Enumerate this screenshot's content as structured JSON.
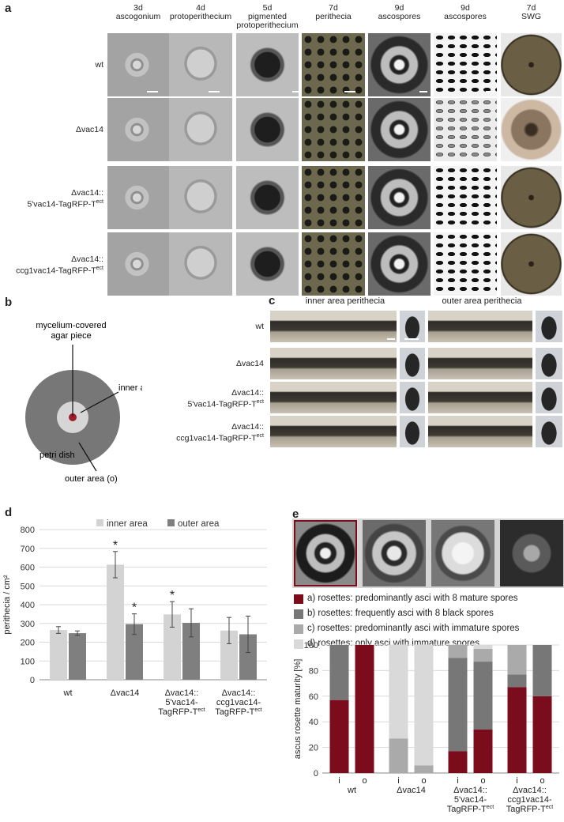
{
  "panel_a": {
    "label": "a",
    "columns": [
      {
        "day": "3d",
        "name": "ascogonium",
        "extra": ""
      },
      {
        "day": "4d",
        "name": "protoperithecium",
        "extra": ""
      },
      {
        "day": "5d",
        "name": "pigmented",
        "extra": "protoperithecium"
      },
      {
        "day": "7d",
        "name": "perithecia",
        "extra": ""
      },
      {
        "day": "9d",
        "name": "ascospores",
        "extra": ""
      },
      {
        "day": "9d",
        "name": "ascospores",
        "extra": ""
      },
      {
        "day": "7d",
        "name": "SWG",
        "extra": ""
      }
    ],
    "rows": [
      {
        "line1": "wt",
        "line2": ""
      },
      {
        "line1": "Δvac14",
        "line2": ""
      },
      {
        "line1": "Δvac14::",
        "line2": "5'vac14-TagRFP-T",
        "sup": "ect"
      },
      {
        "line1": "Δvac14::",
        "line2": "ccg1vac14-TagRFP-T",
        "sup": "ect"
      }
    ]
  },
  "panel_b": {
    "label": "b",
    "agar_label_1": "mycelium-covered",
    "agar_label_2": "agar piece",
    "inner_label": "inner area (i)",
    "dish_label": "petri dish",
    "outer_label": "outer area (o)"
  },
  "panel_c": {
    "label": "c",
    "inner_header": "inner area perithecia",
    "outer_header": "outer area perithecia",
    "rows": [
      {
        "line1": "wt",
        "line2": ""
      },
      {
        "line1": "Δvac14",
        "line2": ""
      },
      {
        "line1": "Δvac14::",
        "line2": "5'vac14-TagRFP-T",
        "sup": "ect"
      },
      {
        "line1": "Δvac14::",
        "line2": "ccg1vac14-TagRFP-T",
        "sup": "ect"
      }
    ]
  },
  "panel_d": {
    "label": "d",
    "chart_data": {
      "type": "bar",
      "ylabel": "perithecia / cm²",
      "ylim": [
        0,
        800
      ],
      "yticks": [
        "0",
        "100",
        "200",
        "300",
        "400",
        "500",
        "600",
        "700",
        "800"
      ],
      "grid": true,
      "legend": "top",
      "categories": [
        {
          "line1": "wt",
          "line2": "",
          "line3": ""
        },
        {
          "line1": "Δvac14",
          "line2": "",
          "line3": ""
        },
        {
          "line1": "Δvac14::",
          "line2": "5'vac14-",
          "line3": "TagRFP-T"
        },
        {
          "line1": "Δvac14::",
          "line2": "ccg1vac14-",
          "line3": "TagRFP-T"
        }
      ],
      "sup": "ect",
      "series": [
        {
          "name": "inner area",
          "color": "#d3d3d3",
          "values": [
            265,
            613,
            348,
            262
          ],
          "errors": [
            18,
            70,
            68,
            70
          ],
          "significant": [
            false,
            true,
            true,
            false
          ]
        },
        {
          "name": "outer area",
          "color": "#7f7f7f",
          "values": [
            248,
            296,
            303,
            242
          ],
          "errors": [
            12,
            55,
            75,
            97
          ],
          "significant": [
            false,
            true,
            false,
            false
          ]
        }
      ],
      "asterisk": "*"
    }
  },
  "panel_e": {
    "label": "e",
    "legend": [
      {
        "text": "a) rosettes: predominantly asci with 8 mature spores",
        "color": "#7a0c1c"
      },
      {
        "text": "b) rosettes: frequently asci with 8 black spores",
        "color": "#777777"
      },
      {
        "text": "c) rosettes: predominantly asci with immature spores",
        "color": "#aaaaaa"
      },
      {
        "text": "d) rosettes: only asci with immature spores",
        "color": "#d9d9d9"
      }
    ],
    "chart_data": {
      "type": "bar",
      "stacked": true,
      "ylabel": "ascus rosette maturity [%]",
      "ylim": [
        0,
        100
      ],
      "yticks": [
        "0",
        "20",
        "40",
        "60",
        "80",
        "100"
      ],
      "groups": [
        {
          "line1": "wt",
          "line2": "",
          "line3": ""
        },
        {
          "line1": "Δvac14",
          "line2": "",
          "line3": ""
        },
        {
          "line1": "Δvac14::",
          "line2": "5'vac14-",
          "line3": "TagRFP-T"
        },
        {
          "line1": "Δvac14::",
          "line2": "ccg1vac14-",
          "line3": "TagRFP-T"
        }
      ],
      "sup": "ect",
      "bar_labels": [
        "i",
        "o",
        "i",
        "o",
        "i",
        "o",
        "i",
        "o"
      ],
      "bars": [
        [
          57,
          43,
          0,
          0
        ],
        [
          100,
          0,
          0,
          0
        ],
        [
          0,
          0,
          27,
          73
        ],
        [
          0,
          0,
          6,
          94
        ],
        [
          17,
          73,
          10,
          0
        ],
        [
          34,
          53,
          10,
          3
        ],
        [
          67,
          10,
          23,
          0
        ],
        [
          60,
          40,
          0,
          0
        ]
      ]
    }
  }
}
